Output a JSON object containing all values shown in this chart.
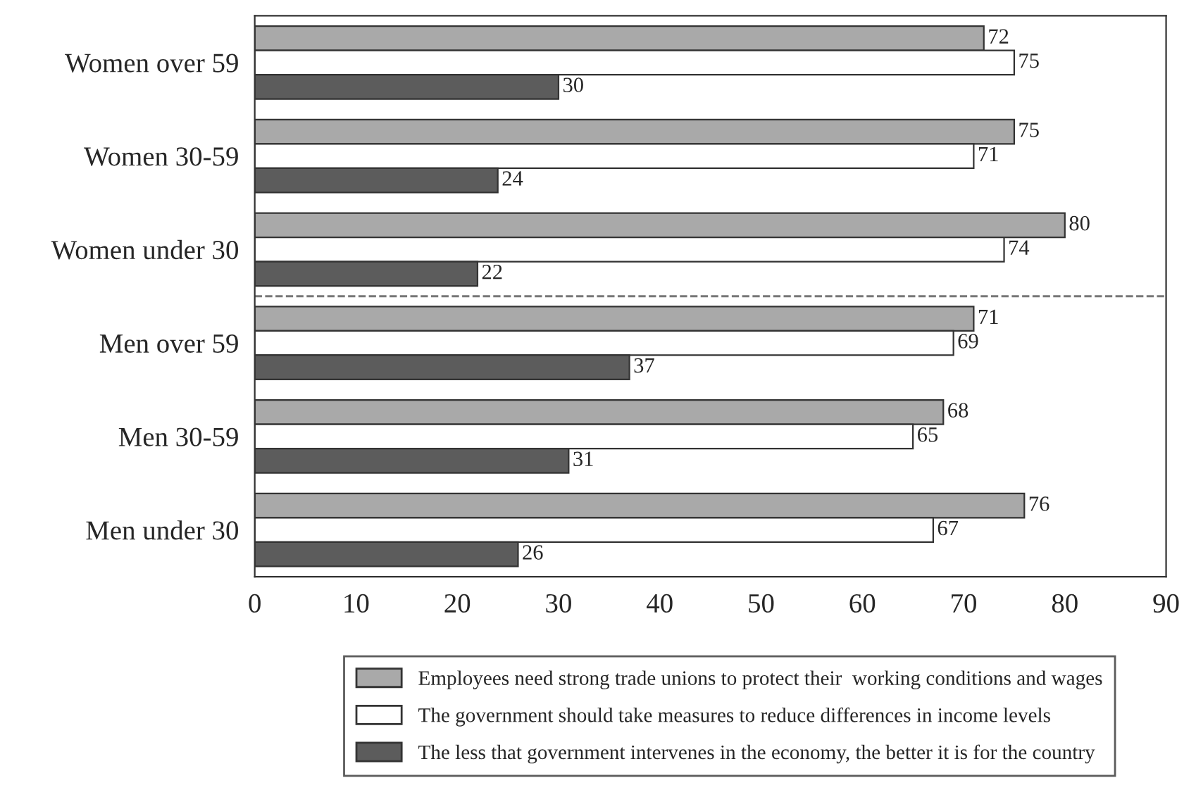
{
  "chart_data": {
    "type": "bar",
    "orientation": "horizontal",
    "categories": [
      "Women over 59",
      "Women 30-59",
      "Women under 30",
      "Men over 59",
      "Men 30-59",
      "Men under 30"
    ],
    "series": [
      {
        "name": "Employees need strong trade unions to protect their  working conditions and wages",
        "color": "#a9a9a9",
        "values": [
          72,
          75,
          80,
          71,
          68,
          76
        ]
      },
      {
        "name": "The government should take measures to reduce differences in income levels",
        "color": "#ffffff",
        "values": [
          75,
          71,
          74,
          69,
          65,
          67
        ]
      },
      {
        "name": "The less that government intervenes in the economy, the better it is for the country",
        "color": "#5c5c5c",
        "values": [
          30,
          24,
          22,
          37,
          31,
          26
        ]
      }
    ],
    "xlim": [
      0,
      90
    ],
    "xticks": [
      0,
      10,
      20,
      30,
      40,
      50,
      60,
      70,
      80,
      90
    ],
    "data_labels": true,
    "legend": "bottom",
    "grid": false
  }
}
